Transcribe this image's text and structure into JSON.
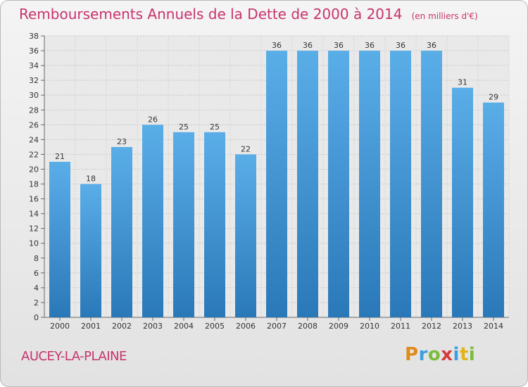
{
  "chart_data": {
    "type": "bar",
    "title": "Remboursements Annuels de la Dette de 2000 à 2014",
    "unit_note": "(en milliers d'€)",
    "categories": [
      "2000",
      "2001",
      "2002",
      "2003",
      "2004",
      "2005",
      "2006",
      "2007",
      "2008",
      "2009",
      "2010",
      "2011",
      "2012",
      "2013",
      "2014"
    ],
    "values": [
      21,
      18,
      23,
      26,
      25,
      25,
      22,
      36,
      36,
      36,
      36,
      36,
      36,
      31,
      29
    ],
    "ylim": [
      0,
      38
    ],
    "yticks": [
      0,
      2,
      4,
      6,
      8,
      10,
      12,
      14,
      16,
      18,
      20,
      22,
      24,
      26,
      28,
      30,
      32,
      34,
      36,
      38
    ],
    "grid": true,
    "bar_color_top": "#5aaee8",
    "bar_color_bottom": "#2a78b8"
  },
  "location": "AUCEY-LA-PLAINE",
  "logo_text": "Proxiti"
}
